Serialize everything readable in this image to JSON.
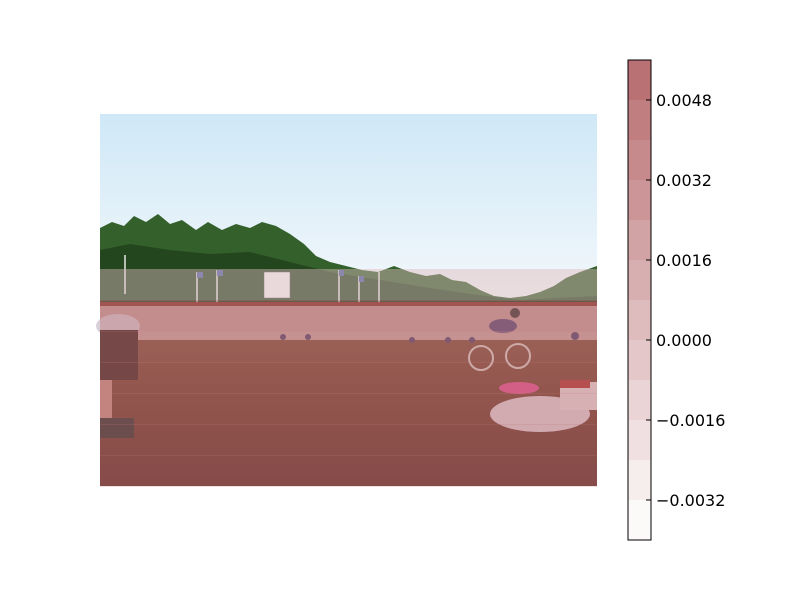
{
  "chart_data": {
    "type": "heatmap",
    "title": "",
    "xlabel": "",
    "ylabel": "",
    "colorbar": {
      "ticks": [
        -0.0032,
        -0.0016,
        0.0,
        0.0016,
        0.0032,
        0.0048
      ],
      "tick_labels": [
        "−0.0032",
        "−0.0016",
        "0.0000",
        "0.0016",
        "0.0032",
        "0.0048"
      ],
      "range": [
        -0.004,
        0.0056
      ],
      "levels": [
        -0.004,
        -0.0032,
        -0.0024,
        -0.0016,
        -0.0008,
        0.0,
        0.0008,
        0.0016,
        0.0024,
        0.0032,
        0.004,
        0.0048,
        0.0056
      ],
      "low_color": "#ffffff",
      "high_color": "#b76b6e",
      "colormap": "Reds (white to red, semi-transparent)"
    },
    "heatmap_rows": [
      {
        "value": 0.0
      },
      {
        "value": 0.0
      },
      {
        "value": 0.0
      },
      {
        "value": 0.0
      },
      {
        "value": 0.0
      },
      {
        "value": 0.0004
      },
      {
        "value": 0.005
      },
      {
        "value": 0.0044
      },
      {
        "value": 0.0046
      },
      {
        "value": 0.0047
      },
      {
        "value": 0.0048
      },
      {
        "value": 0.0049
      }
    ],
    "background_image": "photo of a velodrome cycling track with riders, trees, flags and sky"
  },
  "colors": {
    "sky_top": "#cfe8f7",
    "sky_bottom": "#f2f7fb",
    "trees": "#2f5d2a",
    "track": "#c9a3a0",
    "grass": "#6e3b2c"
  }
}
